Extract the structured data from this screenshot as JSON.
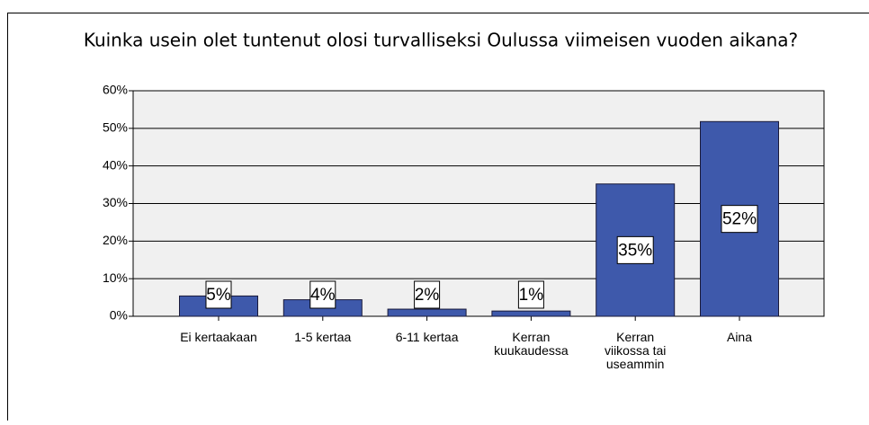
{
  "chart_data": {
    "type": "bar",
    "title": "Kuinka usein olet tuntenut olosi turvalliseksi Oulussa viimeisen vuoden aikana?",
    "categories": [
      "Ei kertaakaan",
      "1-5 kertaa",
      "6-11 kertaa",
      "Kerran kuukaudessa",
      "Kerran viikossa tai useammin",
      "Aina"
    ],
    "values": [
      5.4,
      4.4,
      1.9,
      1.4,
      35.2,
      51.8
    ],
    "value_labels": [
      "5%",
      "4%",
      "2%",
      "1%",
      "35%",
      "52%"
    ],
    "color": "#3e59ab",
    "ylim": [
      0,
      60
    ],
    "yticks": [
      {
        "value": 0,
        "label": "0%"
      },
      {
        "value": 10,
        "label": "10%"
      },
      {
        "value": 20,
        "label": "20%"
      },
      {
        "value": 30,
        "label": "30%"
      },
      {
        "value": 40,
        "label": "40%"
      },
      {
        "value": 50,
        "label": "50%"
      },
      {
        "value": 60,
        "label": "60%"
      }
    ],
    "grid": true
  }
}
